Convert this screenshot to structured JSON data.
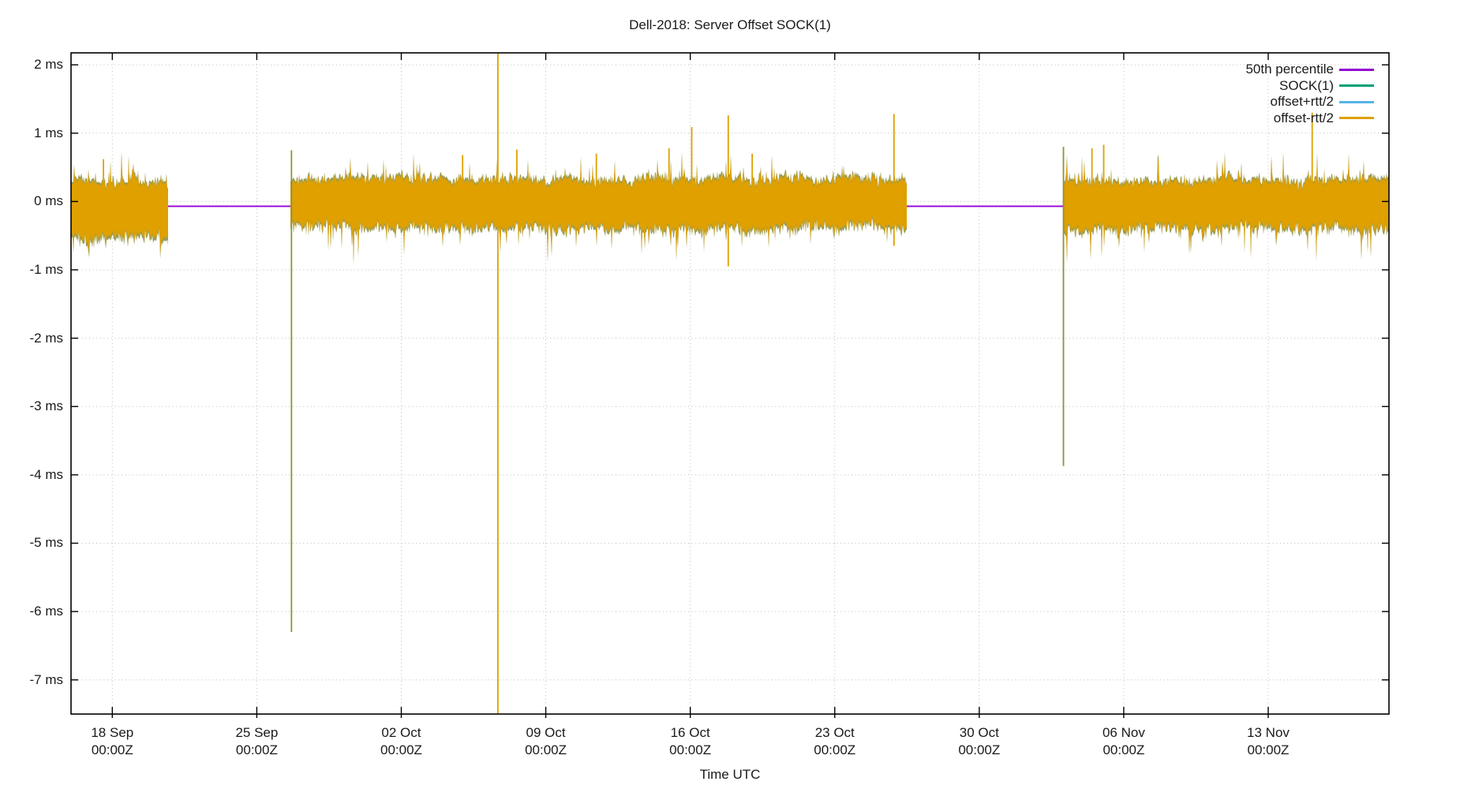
{
  "title": "Dell-2018: Server Offset SOCK(1)",
  "colors": {
    "gold": "#dfa000",
    "olive": "#8f9140",
    "purple": "#9400d3",
    "teal": "#00a077",
    "sky": "#56b4e9",
    "grid": "#bcbcbc",
    "border": "#000000",
    "text": "#1a1a1a"
  },
  "legend": [
    {
      "label": "50th percentile",
      "color_key": "purple"
    },
    {
      "label": "SOCK(1)",
      "color_key": "teal"
    },
    {
      "label": "offset+rtt/2",
      "color_key": "sky"
    },
    {
      "label": "offset-rtt/2",
      "color_key": "gold"
    }
  ],
  "chart_data": {
    "type": "line",
    "title": "Dell-2018: Server Offset SOCK(1)",
    "xlabel": "Time UTC",
    "ylabel": "",
    "grid": true,
    "legend_position": "top-right",
    "ylim_ms": [
      -7.5,
      2.175
    ],
    "xlim_days": [
      -2.0,
      61.85
    ],
    "y_ticks": [
      {
        "label": "2 ms",
        "value": 2
      },
      {
        "label": "1 ms",
        "value": 1
      },
      {
        "label": "0 ms",
        "value": 0
      },
      {
        "label": "-1 ms",
        "value": -1
      },
      {
        "label": "-2 ms",
        "value": -2
      },
      {
        "label": "-3 ms",
        "value": -3
      },
      {
        "label": "-4 ms",
        "value": -4
      },
      {
        "label": "-5 ms",
        "value": -5
      },
      {
        "label": "-6 ms",
        "value": -6
      },
      {
        "label": "-7 ms",
        "value": -7
      }
    ],
    "x_ticks": [
      {
        "label": "18 Sep",
        "sublabel": "00:00Z",
        "day": 0
      },
      {
        "label": "25 Sep",
        "sublabel": "00:00Z",
        "day": 7
      },
      {
        "label": "02 Oct",
        "sublabel": "00:00Z",
        "day": 14
      },
      {
        "label": "09 Oct",
        "sublabel": "00:00Z",
        "day": 21
      },
      {
        "label": "16 Oct",
        "sublabel": "00:00Z",
        "day": 28
      },
      {
        "label": "23 Oct",
        "sublabel": "00:00Z",
        "day": 35
      },
      {
        "label": "30 Oct",
        "sublabel": "00:00Z",
        "day": 42
      },
      {
        "label": "06 Nov",
        "sublabel": "00:00Z",
        "day": 49
      },
      {
        "label": "13 Nov",
        "sublabel": "00:00Z",
        "day": 56
      }
    ],
    "series": [
      {
        "name": "50th percentile",
        "color_key": "purple",
        "style": "horizontal-line",
        "value_ms": -0.07,
        "visible_gaps_days": [
          [
            2.7,
            8.64
          ],
          [
            38.48,
            46.06
          ]
        ]
      },
      {
        "name": "SOCK(1)",
        "color_key": "teal",
        "style": "hidden-under-band"
      },
      {
        "name": "offset+rtt/2",
        "color_key": "sky",
        "style": "hidden-under-band"
      },
      {
        "name": "offset-rtt/2",
        "color_key": "gold",
        "style": "noise-band",
        "band_segments": [
          {
            "start_day": -2.0,
            "end_day": 2.7,
            "top_ms": 0.26,
            "bottom_ms": -0.48,
            "jitter_top": 0.14,
            "jitter_bottom": 0.17
          },
          {
            "start_day": 8.64,
            "end_day": 38.48,
            "top_ms": 0.3,
            "bottom_ms": -0.36,
            "jitter_top": 0.12,
            "jitter_bottom": 0.14
          },
          {
            "start_day": 46.06,
            "end_day": 61.85,
            "top_ms": 0.3,
            "bottom_ms": -0.38,
            "jitter_top": 0.12,
            "jitter_bottom": 0.15
          }
        ],
        "spikes": [
          {
            "day": -0.43,
            "top_ms": 0.62,
            "bottom_ms": null,
            "color_key": "gold"
          },
          {
            "day": 0.99,
            "top_ms": 0.47,
            "bottom_ms": null,
            "color_key": "gold"
          },
          {
            "day": 8.68,
            "top_ms": 0.75,
            "bottom_ms": -6.3,
            "color_key": "olive"
          },
          {
            "day": 16.97,
            "top_ms": 0.68,
            "bottom_ms": null,
            "color_key": "gold"
          },
          {
            "day": 18.68,
            "top_ms": 2.175,
            "bottom_ms": -7.5,
            "color_key": "gold"
          },
          {
            "day": 19.6,
            "top_ms": 0.76,
            "bottom_ms": null,
            "color_key": "gold"
          },
          {
            "day": 23.45,
            "top_ms": 0.7,
            "bottom_ms": null,
            "color_key": "gold"
          },
          {
            "day": 26.97,
            "top_ms": 0.78,
            "bottom_ms": null,
            "color_key": "gold"
          },
          {
            "day": 28.07,
            "top_ms": 1.09,
            "bottom_ms": null,
            "color_key": "gold"
          },
          {
            "day": 29.84,
            "top_ms": 1.26,
            "bottom_ms": -0.95,
            "color_key": "gold"
          },
          {
            "day": 31.0,
            "top_ms": 0.7,
            "bottom_ms": null,
            "color_key": "gold"
          },
          {
            "day": 37.87,
            "top_ms": 1.28,
            "bottom_ms": -0.65,
            "color_key": "gold"
          },
          {
            "day": 46.08,
            "top_ms": 0.8,
            "bottom_ms": -3.87,
            "color_key": "olive"
          },
          {
            "day": 47.46,
            "top_ms": 0.78,
            "bottom_ms": null,
            "color_key": "gold"
          },
          {
            "day": 48.03,
            "top_ms": 0.83,
            "bottom_ms": null,
            "color_key": "gold"
          },
          {
            "day": 58.13,
            "top_ms": 1.3,
            "bottom_ms": null,
            "color_key": "gold"
          }
        ]
      }
    ]
  }
}
